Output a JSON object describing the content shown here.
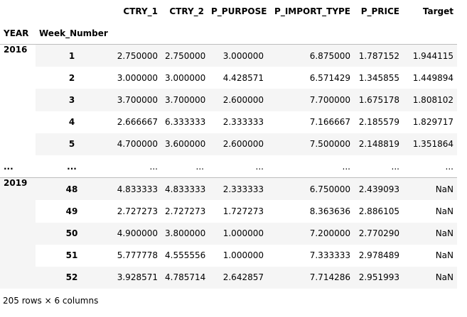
{
  "table": {
    "columns": [
      "CTRY_1",
      "CTRY_2",
      "P_PURPOSE",
      "P_IMPORT_TYPE",
      "P_PRICE",
      "Target"
    ],
    "index_names": [
      "YEAR",
      "Week_Number"
    ],
    "ellipsis": "...",
    "groups": [
      {
        "year": "2016",
        "rows": [
          {
            "week": "1",
            "values": [
              "2.750000",
              "2.750000",
              "3.000000",
              "6.875000",
              "1.787152",
              "1.944115"
            ]
          },
          {
            "week": "2",
            "values": [
              "3.000000",
              "3.000000",
              "4.428571",
              "6.571429",
              "1.345855",
              "1.449894"
            ]
          },
          {
            "week": "3",
            "values": [
              "3.700000",
              "3.700000",
              "2.600000",
              "7.700000",
              "1.675178",
              "1.808102"
            ]
          },
          {
            "week": "4",
            "values": [
              "2.666667",
              "6.333333",
              "2.333333",
              "7.166667",
              "2.185579",
              "1.829717"
            ]
          },
          {
            "week": "5",
            "values": [
              "4.700000",
              "3.600000",
              "2.600000",
              "7.500000",
              "2.148819",
              "1.351864"
            ]
          }
        ]
      },
      {
        "year": "2019",
        "rows": [
          {
            "week": "48",
            "values": [
              "4.833333",
              "4.833333",
              "2.333333",
              "6.750000",
              "2.439093",
              "NaN"
            ]
          },
          {
            "week": "49",
            "values": [
              "2.727273",
              "2.727273",
              "1.727273",
              "8.363636",
              "2.886105",
              "NaN"
            ]
          },
          {
            "week": "50",
            "values": [
              "4.900000",
              "3.800000",
              "1.000000",
              "7.200000",
              "2.770290",
              "NaN"
            ]
          },
          {
            "week": "51",
            "values": [
              "5.777778",
              "4.555556",
              "1.000000",
              "7.333333",
              "2.978489",
              "NaN"
            ]
          },
          {
            "week": "52",
            "values": [
              "3.928571",
              "4.785714",
              "2.642857",
              "7.714286",
              "2.951993",
              "NaN"
            ]
          }
        ]
      }
    ]
  },
  "footer": "205 rows × 6 columns"
}
